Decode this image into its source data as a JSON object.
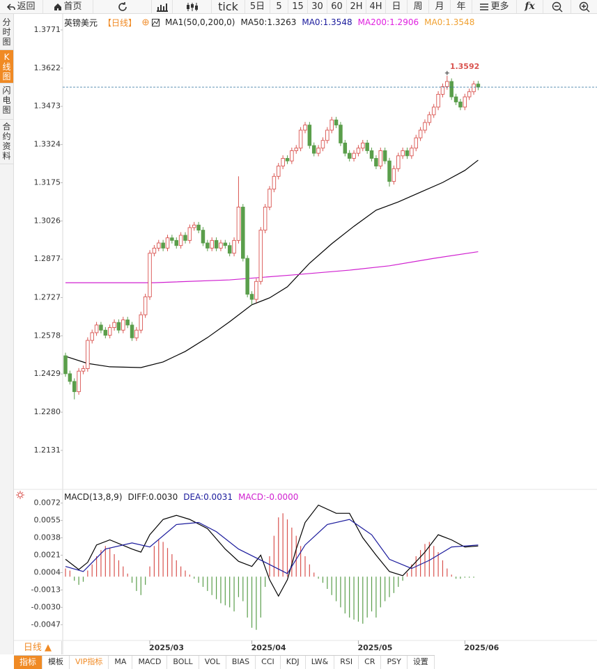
{
  "toolbar": {
    "back": "返回",
    "home": "首页",
    "periods": [
      "tick",
      "5日",
      "5",
      "15",
      "30",
      "60",
      "2H",
      "4H",
      "日",
      "周",
      "月",
      "年"
    ],
    "more": "更多",
    "fx": "fx"
  },
  "sidebar": [
    "分时图",
    "K线图",
    "闪电图",
    "合约资料"
  ],
  "chart_data": [
    {
      "type": "candlestick",
      "legend": [
        {
          "text": "英镑美元",
          "color": "#222222"
        },
        {
          "text": "【日线】",
          "color": "#f08a24"
        },
        {
          "text": "MA1(50,0,200,0)",
          "color": "#222222"
        },
        {
          "text": "MA50:1.3263",
          "color": "#222222"
        },
        {
          "text": "MA0:1.3548",
          "color": "#1a1a9c"
        },
        {
          "text": "MA200:1.2906",
          "color": "#e020e0"
        },
        {
          "text": "MA0:1.3548",
          "color": "#f0a030"
        }
      ],
      "up_color": "#d9534f",
      "down_color": "#5a9e4b",
      "price_line_color": "#2a6f9e",
      "ylim": [
        1.1987,
        1.3828
      ],
      "yticks": [
        1.2131,
        {
          "value": 1.228,
          "label": "1.2280"
        },
        1.2429,
        1.2578,
        1.2727,
        1.2877,
        1.3026,
        1.3175,
        1.3324,
        1.3473,
        1.3622,
        1.3771
      ],
      "open": [
        1.25,
        1.243,
        1.24,
        1.236,
        1.244,
        1.245,
        1.256,
        1.259,
        1.262,
        1.26,
        1.258,
        1.261,
        1.263,
        1.26,
        1.264,
        1.262,
        1.257,
        1.26,
        1.266,
        1.273,
        1.29,
        1.292,
        1.294,
        1.292,
        1.296,
        1.295,
        1.293,
        1.297,
        1.295,
        1.3,
        1.301,
        1.299,
        1.294,
        1.292,
        1.295,
        1.292,
        1.294,
        1.293,
        1.29,
        1.295,
        1.308,
        1.288,
        1.274,
        1.272,
        1.279,
        1.299,
        1.308,
        1.315,
        1.32,
        1.324,
        1.327,
        1.326,
        1.33,
        1.331,
        1.338,
        1.34,
        1.332,
        1.329,
        1.331,
        1.334,
        1.338,
        1.342,
        1.34,
        1.333,
        1.329,
        1.327,
        1.329,
        1.331,
        1.333,
        1.33,
        1.327,
        1.324,
        1.33,
        1.326,
        1.318,
        1.323,
        1.328,
        1.33,
        1.328,
        1.331,
        1.335,
        1.338,
        1.341,
        1.344,
        1.347,
        1.352,
        1.355,
        1.357,
        1.351,
        1.349,
        1.347,
        1.351,
        1.353,
        1.356
      ],
      "high": [
        1.2512,
        1.2442,
        1.2412,
        1.2452,
        1.2462,
        1.2572,
        1.2602,
        1.2632,
        1.2632,
        1.2612,
        1.2622,
        1.2642,
        1.2642,
        1.2652,
        1.2652,
        1.2632,
        1.2612,
        1.2672,
        1.2742,
        1.2912,
        1.2932,
        1.2952,
        1.2952,
        1.2972,
        1.2972,
        1.2962,
        1.2982,
        1.2982,
        1.3012,
        1.3022,
        1.3022,
        1.3002,
        1.2952,
        1.2962,
        1.2962,
        1.2952,
        1.2952,
        1.2942,
        1.2962,
        1.32,
        1.3092,
        1.2892,
        1.2752,
        1.2802,
        1.3002,
        1.3092,
        1.3162,
        1.3212,
        1.3252,
        1.3282,
        1.3282,
        1.3312,
        1.3322,
        1.3392,
        1.3412,
        1.3412,
        1.3332,
        1.3322,
        1.3352,
        1.3392,
        1.3432,
        1.3432,
        1.3412,
        1.3342,
        1.3302,
        1.3302,
        1.3322,
        1.3342,
        1.3342,
        1.3312,
        1.3282,
        1.3312,
        1.3312,
        1.3272,
        1.3242,
        1.3292,
        1.3312,
        1.3312,
        1.3322,
        1.3362,
        1.3392,
        1.3422,
        1.3452,
        1.3482,
        1.3532,
        1.3562,
        1.3592,
        1.3582,
        1.3522,
        1.3502,
        1.3522,
        1.3542,
        1.3572,
        1.3572
      ],
      "low": [
        1.2418,
        1.2388,
        1.233,
        1.2348,
        1.2428,
        1.2438,
        1.2548,
        1.2578,
        1.2588,
        1.2568,
        1.2568,
        1.2598,
        1.2588,
        1.2588,
        1.2608,
        1.2558,
        1.2558,
        1.2588,
        1.2648,
        1.2718,
        1.2888,
        1.2908,
        1.2908,
        1.2908,
        1.2938,
        1.2918,
        1.2918,
        1.2938,
        1.2938,
        1.2988,
        1.2978,
        1.2928,
        1.2908,
        1.2908,
        1.2908,
        1.2908,
        1.2918,
        1.2888,
        1.2888,
        1.2938,
        1.2868,
        1.2728,
        1.27,
        1.2708,
        1.2778,
        1.2978,
        1.3068,
        1.3138,
        1.3188,
        1.3228,
        1.3248,
        1.3248,
        1.3288,
        1.3298,
        1.3368,
        1.3308,
        1.3278,
        1.3278,
        1.3298,
        1.3328,
        1.3368,
        1.3388,
        1.3318,
        1.3278,
        1.3258,
        1.3258,
        1.3278,
        1.3298,
        1.3288,
        1.3258,
        1.3228,
        1.3228,
        1.3248,
        1.316,
        1.3168,
        1.3218,
        1.3268,
        1.3268,
        1.3268,
        1.3298,
        1.3338,
        1.3368,
        1.3398,
        1.3428,
        1.3458,
        1.3508,
        1.3538,
        1.3498,
        1.3478,
        1.3458,
        1.3458,
        1.3498,
        1.3518,
        1.3536
      ],
      "close": [
        1.243,
        1.24,
        1.236,
        1.244,
        1.245,
        1.256,
        1.259,
        1.262,
        1.26,
        1.258,
        1.261,
        1.263,
        1.26,
        1.264,
        1.262,
        1.257,
        1.26,
        1.266,
        1.273,
        1.29,
        1.292,
        1.294,
        1.292,
        1.296,
        1.295,
        1.293,
        1.297,
        1.295,
        1.3,
        1.301,
        1.299,
        1.294,
        1.292,
        1.295,
        1.292,
        1.294,
        1.293,
        1.29,
        1.295,
        1.308,
        1.288,
        1.274,
        1.272,
        1.279,
        1.299,
        1.308,
        1.315,
        1.32,
        1.324,
        1.327,
        1.326,
        1.33,
        1.331,
        1.338,
        1.34,
        1.332,
        1.329,
        1.331,
        1.334,
        1.338,
        1.342,
        1.34,
        1.333,
        1.329,
        1.327,
        1.329,
        1.331,
        1.333,
        1.33,
        1.327,
        1.324,
        1.33,
        1.326,
        1.318,
        1.323,
        1.328,
        1.33,
        1.328,
        1.331,
        1.335,
        1.338,
        1.341,
        1.344,
        1.347,
        1.352,
        1.355,
        1.357,
        1.351,
        1.349,
        1.347,
        1.351,
        1.353,
        1.356,
        1.3548
      ],
      "lines": [
        {
          "color": "#000000",
          "x": [
            0,
            5,
            10,
            17,
            22,
            27,
            32,
            37,
            42,
            46,
            50,
            55,
            60,
            65,
            70,
            75,
            80,
            85,
            90,
            93
          ],
          "values": [
            1.2498,
            1.247,
            1.2457,
            1.2454,
            1.2476,
            1.2517,
            1.2571,
            1.2633,
            1.2699,
            1.2726,
            1.2769,
            1.2861,
            1.2937,
            1.3005,
            1.3068,
            1.31,
            1.3138,
            1.3176,
            1.3223,
            1.3263
          ]
        },
        {
          "color": "#d020d0",
          "x": [
            0,
            20,
            37,
            51,
            64,
            73,
            83,
            93
          ],
          "values": [
            1.2785,
            1.2785,
            1.2796,
            1.2815,
            1.2834,
            1.2851,
            1.288,
            1.2906
          ]
        }
      ]
    },
    {
      "type": "macd",
      "legend": [
        {
          "text": "MACD(13,8,9)",
          "color": "#222222"
        },
        {
          "text": "DIFF:0.0030",
          "color": "#222222"
        },
        {
          "text": "DEA:0.0031",
          "color": "#1a1a9c"
        },
        {
          "text": "MACD:-0.0000",
          "color": "#d020d0"
        }
      ],
      "ylim": [
        -0.0059,
        0.0084
      ],
      "yticks": [
        -0.0047,
        {
          "value": -0.003,
          "label": "-0.0030"
        },
        -0.0013,
        0.0004,
        0.0021,
        0.0038,
        0.0055,
        0.0072
      ],
      "xticks": [
        {
          "value": 19,
          "label": "2025/03"
        },
        {
          "value": 42,
          "label": "2025/04"
        },
        {
          "value": 66,
          "label": "2025/05"
        },
        {
          "value": 90,
          "label": "2025/06"
        }
      ],
      "histogram": {
        "up_color": "#d9534f",
        "down_color": "#5a9e4b",
        "values": [
          0.0008,
          0.0006,
          -0.0004,
          -0.0008,
          -0.0005,
          0.0006,
          0.0012,
          0.002,
          0.0026,
          0.003,
          0.0028,
          0.0022,
          0.0016,
          0.001,
          0.0003,
          -0.0006,
          -0.0014,
          -0.0018,
          -0.0008,
          0.001,
          0.003,
          0.0036,
          0.0034,
          0.0028,
          0.0022,
          0.0016,
          0.001,
          0.0006,
          0.0002,
          -0.0002,
          -0.0006,
          -0.001,
          -0.0014,
          -0.0018,
          -0.0022,
          -0.0026,
          -0.0028,
          -0.003,
          -0.0034,
          -0.002,
          -0.0024,
          -0.004,
          -0.005,
          -0.0052,
          -0.004,
          -0.001,
          0.002,
          0.004,
          0.0058,
          0.0062,
          0.0056,
          0.0048,
          0.004,
          0.003,
          0.002,
          0.0012,
          0.0004,
          -0.0002,
          -0.0006,
          -0.0012,
          -0.0018,
          -0.0024,
          -0.003,
          -0.0036,
          -0.004,
          -0.0042,
          -0.0044,
          -0.0046,
          -0.004,
          -0.0034,
          -0.004,
          -0.003,
          -0.0024,
          -0.002,
          -0.0016,
          -0.001,
          -0.0004,
          0.0004,
          0.0012,
          0.002,
          0.0026,
          0.0032,
          0.0034,
          0.003,
          0.0024,
          0.0016,
          0.0008,
          0.0002,
          -0.0002,
          -0.0002,
          -0.0001,
          -0.0001,
          -0.0001,
          0
        ]
      },
      "series": [
        {
          "color": "#000000",
          "x": [
            0,
            3,
            5,
            7,
            10,
            15,
            17,
            19,
            22,
            25,
            28,
            32,
            36,
            39,
            42,
            44,
            46,
            48,
            50,
            52,
            54,
            57,
            61,
            64,
            67,
            70,
            73,
            76,
            78,
            81,
            84,
            87,
            90,
            93
          ],
          "values": [
            0.0017,
            0.0007,
            0.0014,
            0.0031,
            0.0036,
            0.0027,
            0.0024,
            0.0041,
            0.0056,
            0.006,
            0.0056,
            0.0047,
            0.0027,
            0.0015,
            0.001,
            0.0021,
            -0.0003,
            -0.0019,
            -0.0003,
            0.0027,
            0.0053,
            0.007,
            0.0062,
            0.0062,
            0.0038,
            0.0021,
            0.0005,
            0.0001,
            0.001,
            0.0024,
            0.0041,
            0.0036,
            0.0029,
            0.003
          ]
        },
        {
          "color": "#1a1a9c",
          "x": [
            0,
            4,
            9,
            15,
            19,
            25,
            30,
            34,
            39,
            45,
            50,
            54,
            59,
            64,
            69,
            73,
            78,
            82,
            87,
            93
          ],
          "values": [
            0.001,
            0.0005,
            0.0027,
            0.0033,
            0.0029,
            0.0051,
            0.0053,
            0.0044,
            0.0027,
            0.0014,
            0.0003,
            0.0031,
            0.0051,
            0.0056,
            0.0041,
            0.0017,
            0.0008,
            0.0016,
            0.0029,
            0.0031
          ]
        }
      ]
    }
  ],
  "bottom": {
    "period": "日线 ▲",
    "tabs": [
      "指标",
      "模板",
      "VIP指标",
      "MA",
      "MACD",
      "BOLL",
      "VOL",
      "BIAS",
      "CCI",
      "KDJ",
      "LW&",
      "RSI",
      "CR",
      "PSY",
      "设置"
    ]
  }
}
